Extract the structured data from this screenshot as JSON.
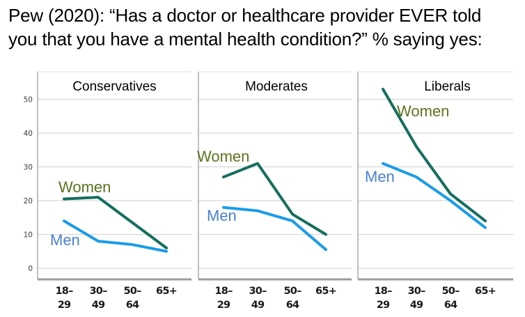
{
  "title_lines": [
    "Pew (2020): “Has a doctor or healthcare provider EVER told",
    "you that you have a mental health condition?” % saying yes:"
  ],
  "chart_data": {
    "type": "line",
    "title": "Pew (2020): “Has a doctor or healthcare provider EVER told you that you have a mental health condition?” % saying yes:",
    "categories": [
      "18–29",
      "30–49",
      "50–64",
      "65+"
    ],
    "y_ticks": [
      0,
      10,
      20,
      30,
      40,
      50
    ],
    "ylim": [
      0,
      58
    ],
    "xlabel": "",
    "ylabel": "",
    "grid": true,
    "legend_position": "inline-labels",
    "panels": [
      {
        "title": "Conservatives",
        "series": [
          {
            "name": "Women",
            "values": [
              20.5,
              21,
              13.5,
              6
            ],
            "color": "#146e5e",
            "label_color": "#5a741f"
          },
          {
            "name": "Men",
            "values": [
              14,
              8,
              7,
              5
            ],
            "color": "#1a9ce8",
            "label_color": "#4a80d8"
          }
        ]
      },
      {
        "title": "Moderates",
        "series": [
          {
            "name": "Women",
            "values": [
              27,
              31,
              16,
              10
            ],
            "color": "#146e5e",
            "label_color": "#5a741f"
          },
          {
            "name": "Men",
            "values": [
              18,
              17,
              14,
              5.5
            ],
            "color": "#1a9ce8",
            "label_color": "#4a80d8"
          }
        ]
      },
      {
        "title": "Liberals",
        "series": [
          {
            "name": "Women",
            "values": [
              53,
              36,
              22,
              14
            ],
            "color": "#146e5e",
            "label_color": "#5a741f"
          },
          {
            "name": "Men",
            "values": [
              31,
              27,
              20,
              12
            ],
            "color": "#1a9ce8",
            "label_color": "#4a80d8"
          }
        ]
      }
    ],
    "colors": {
      "grid": "#d6d6d6",
      "axis": "#ababab",
      "baseline": "#9b9b9b",
      "tick_text": "#3c3c3c",
      "title_text": "#000000"
    }
  }
}
